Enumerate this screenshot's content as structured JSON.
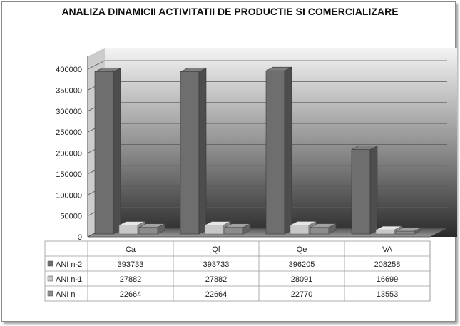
{
  "chart_data": {
    "type": "bar",
    "title": "ANALIZA DINAMICII ACTIVITATII DE PRODUCTIE SI COMERCIALIZARE",
    "categories": [
      "Ca",
      "Qf",
      "Qe",
      "VA"
    ],
    "series": [
      {
        "name": "ANI n-2",
        "values": [
          393733,
          393733,
          396205,
          208258
        ],
        "color": "#6e6e6e"
      },
      {
        "name": "ANI n-1",
        "values": [
          27882,
          27882,
          28091,
          16699
        ],
        "color": "#c8c8c8"
      },
      {
        "name": "ANI n",
        "values": [
          22664,
          22664,
          22770,
          13553
        ],
        "color": "#8c8c8c"
      }
    ],
    "yticks": [
      "0",
      "50000",
      "100000",
      "150000",
      "200000",
      "250000",
      "300000",
      "350000",
      "400000"
    ],
    "ylim": [
      0,
      400000
    ],
    "data_table": true,
    "grid": true
  }
}
